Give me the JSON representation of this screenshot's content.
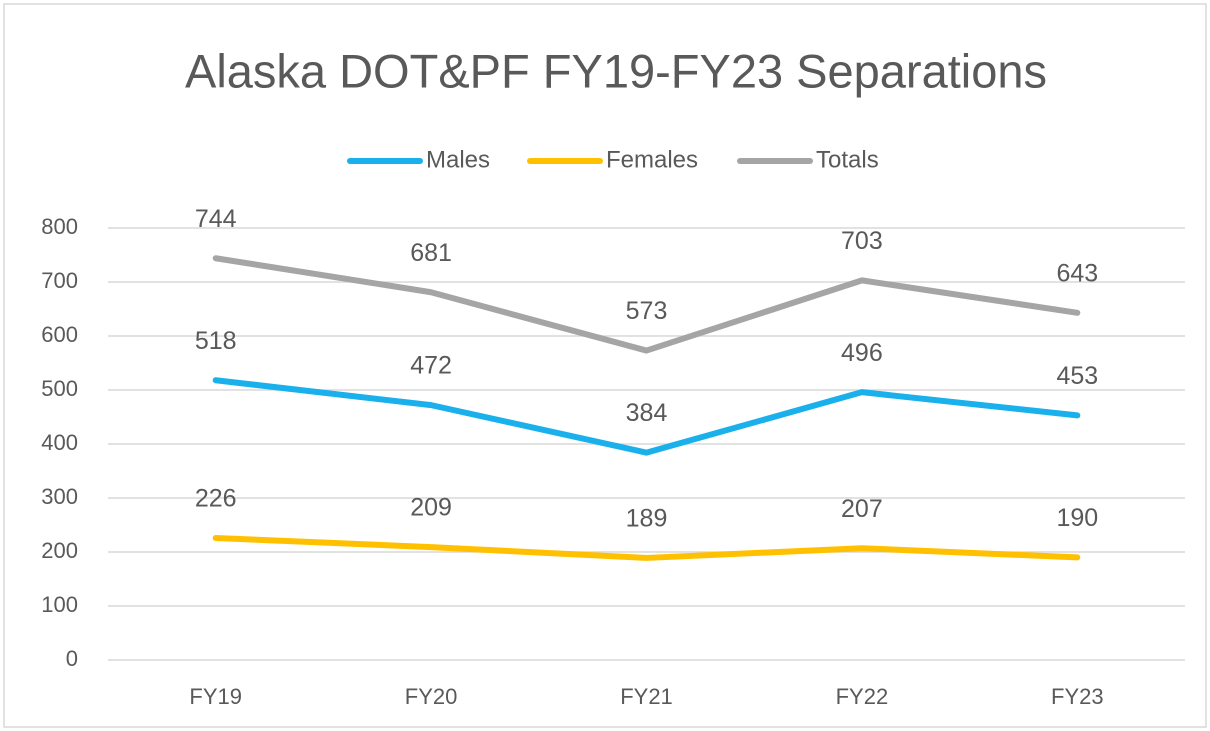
{
  "chart_data": {
    "type": "line",
    "title": "Alaska DOT&PF FY19-FY23 Separations",
    "categories": [
      "FY19",
      "FY20",
      "FY21",
      "FY22",
      "FY23"
    ],
    "series": [
      {
        "name": "Males",
        "color": "#1ab0ec",
        "values": [
          518,
          472,
          384,
          496,
          453
        ]
      },
      {
        "name": "Females",
        "color": "#ffc000",
        "values": [
          226,
          209,
          189,
          207,
          190
        ]
      },
      {
        "name": "Totals",
        "color": "#a5a5a5",
        "values": [
          744,
          681,
          573,
          703,
          643
        ]
      }
    ],
    "ylim": [
      0,
      800
    ],
    "yticks": [
      0,
      100,
      200,
      300,
      400,
      500,
      600,
      700,
      800
    ],
    "grid": true,
    "legend": "top",
    "data_labels": true
  }
}
